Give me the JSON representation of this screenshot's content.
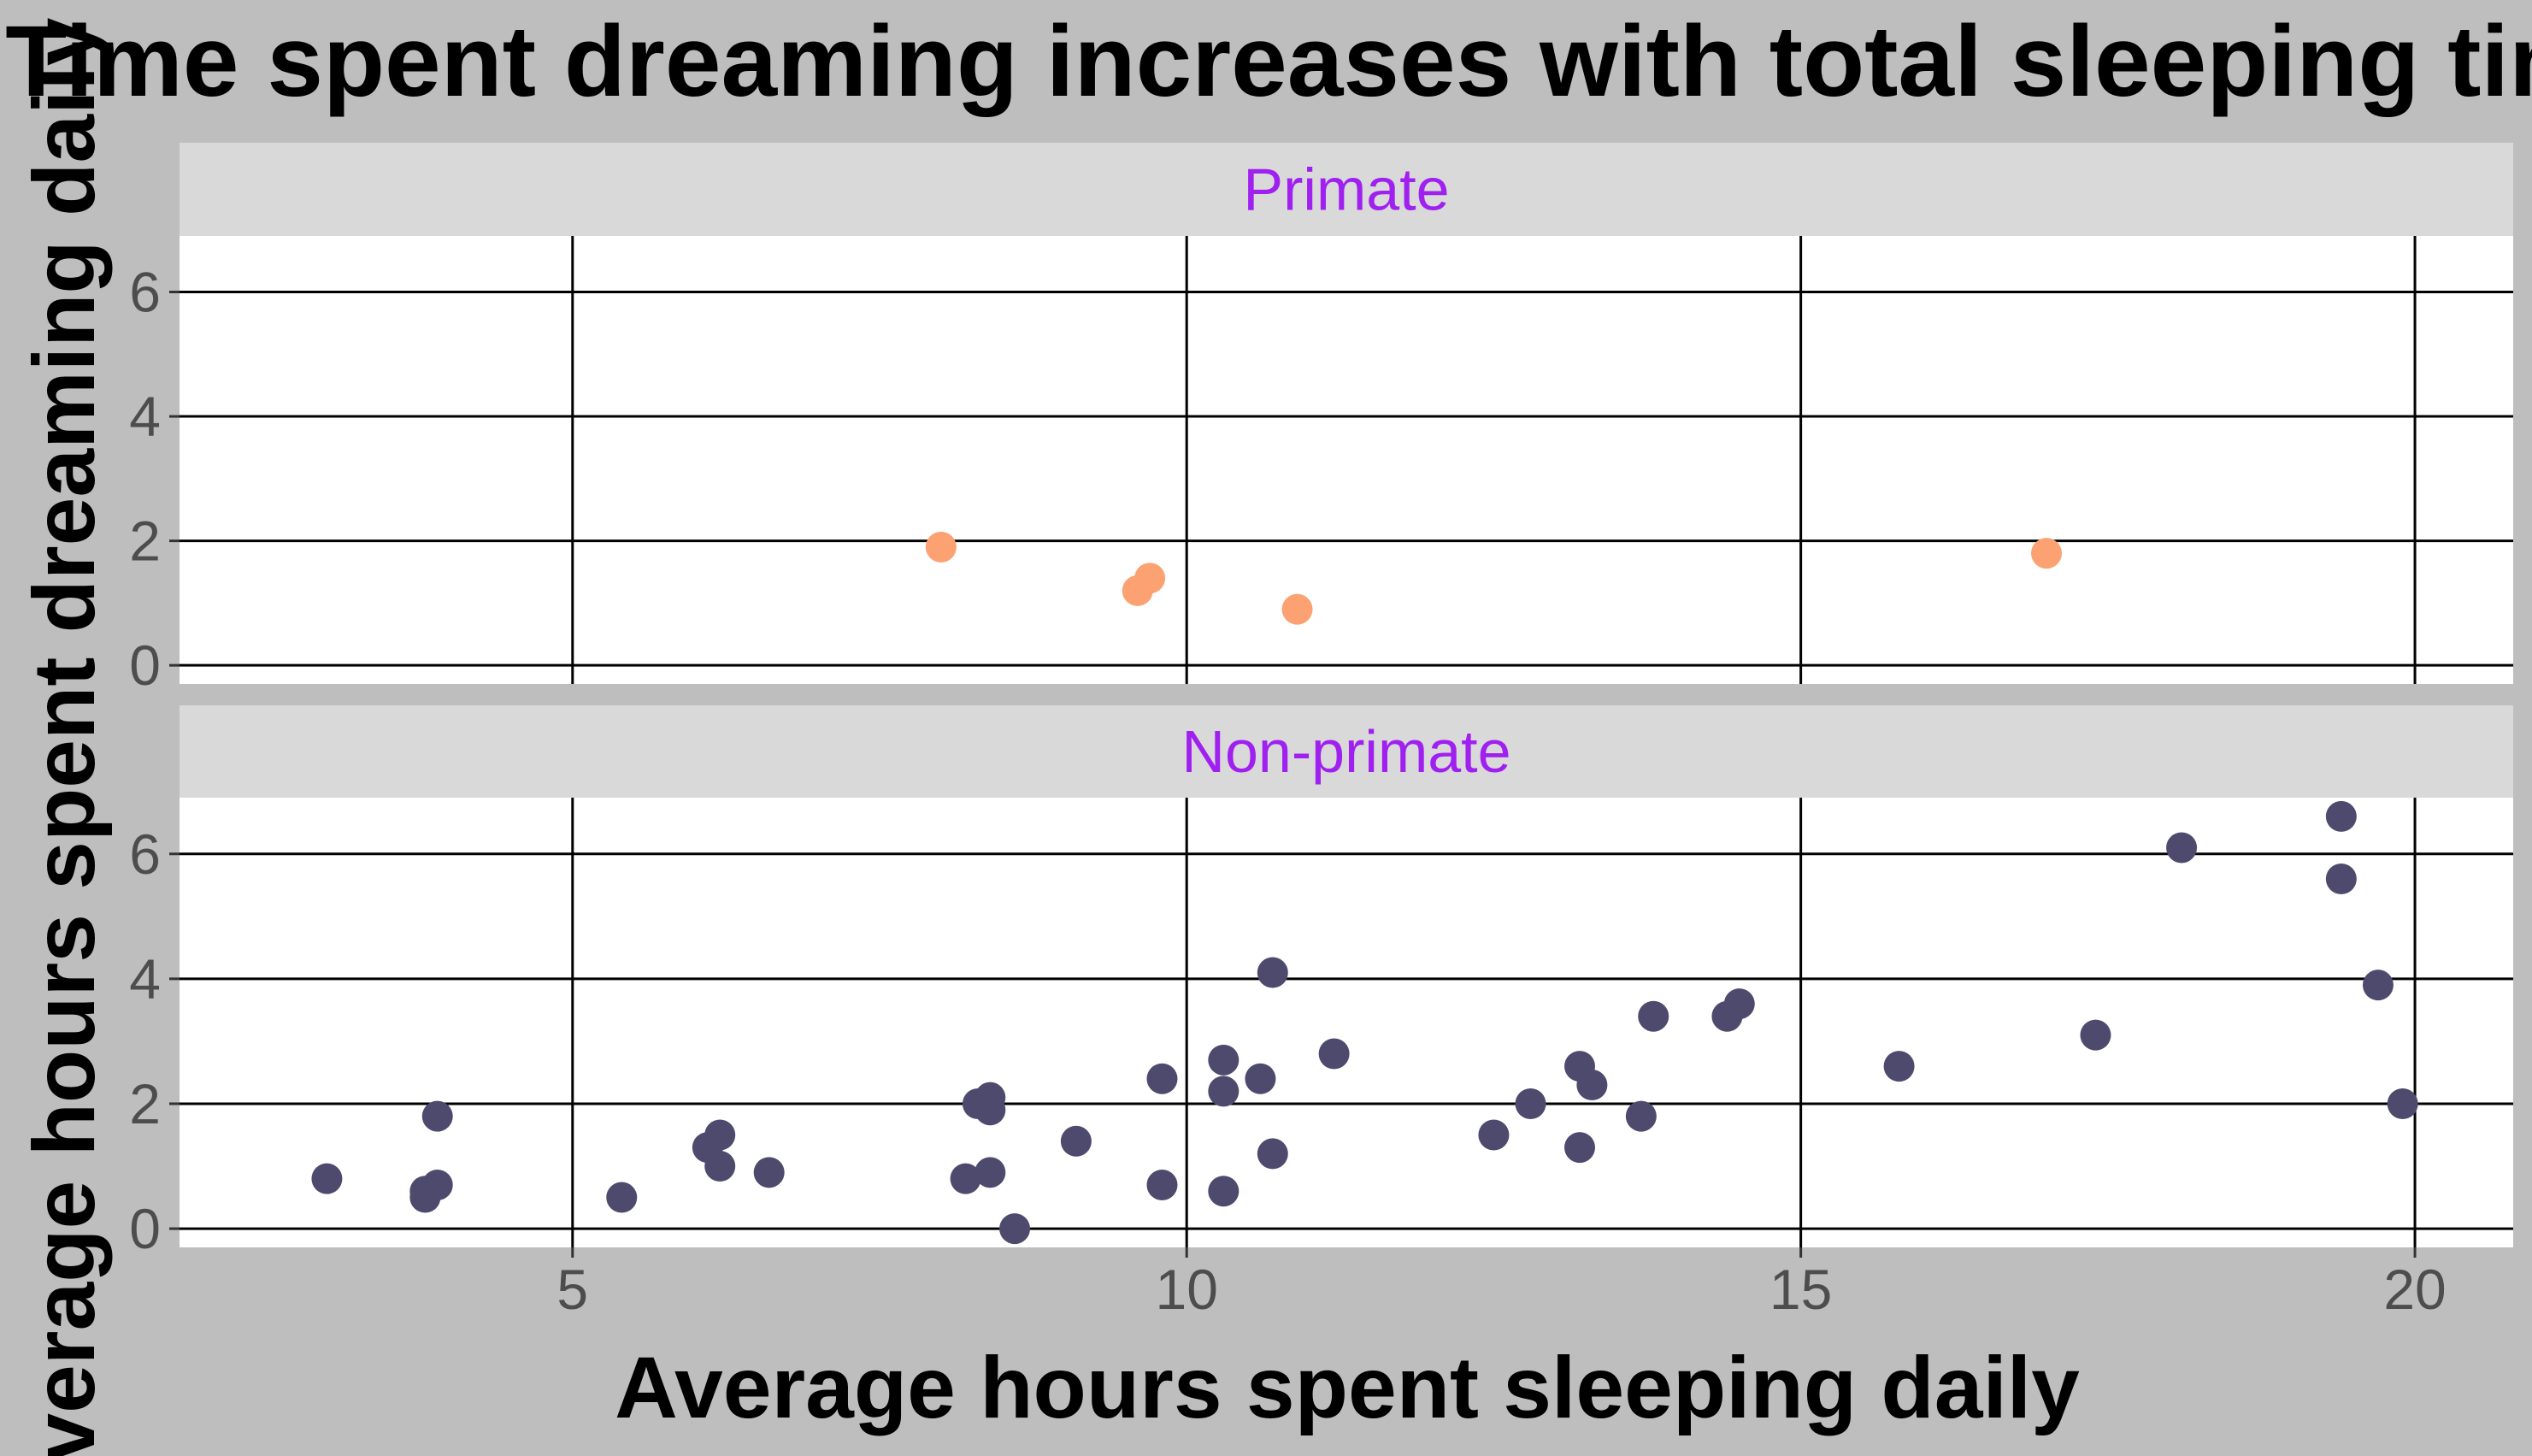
{
  "chart_data": {
    "type": "scatter",
    "title": "Time spent dreaming increases with total sleeping time",
    "xlabel": "Average hours spent sleeping daily",
    "ylabel": "Average hours spent dreaming daily",
    "xlim": [
      1.8,
      20.8
    ],
    "ylim": [
      -0.3,
      6.9
    ],
    "x_ticks": [
      5,
      10,
      15,
      20
    ],
    "y_ticks": [
      0,
      2,
      4,
      6
    ],
    "grid": true,
    "panels": [
      {
        "label": "Primate",
        "color": "#fca272",
        "points": [
          {
            "x": 8.0,
            "y": 1.9
          },
          {
            "x": 9.7,
            "y": 1.4
          },
          {
            "x": 9.6,
            "y": 1.2
          },
          {
            "x": 10.9,
            "y": 0.9
          },
          {
            "x": 17.0,
            "y": 1.8
          }
        ]
      },
      {
        "label": "Non-primate",
        "color": "#4e4a6e",
        "points": [
          {
            "x": 3.0,
            "y": 0.8
          },
          {
            "x": 3.8,
            "y": 0.6
          },
          {
            "x": 3.8,
            "y": 0.5
          },
          {
            "x": 3.9,
            "y": 0.7
          },
          {
            "x": 3.9,
            "y": 1.8
          },
          {
            "x": 5.4,
            "y": 0.5
          },
          {
            "x": 6.1,
            "y": 1.3
          },
          {
            "x": 6.2,
            "y": 1.5
          },
          {
            "x": 6.2,
            "y": 1.0
          },
          {
            "x": 6.6,
            "y": 0.9
          },
          {
            "x": 8.2,
            "y": 0.8
          },
          {
            "x": 8.3,
            "y": 2.0
          },
          {
            "x": 8.4,
            "y": 2.1
          },
          {
            "x": 8.4,
            "y": 1.9
          },
          {
            "x": 8.4,
            "y": 0.9
          },
          {
            "x": 8.6,
            "y": 0.0
          },
          {
            "x": 9.1,
            "y": 1.4
          },
          {
            "x": 9.8,
            "y": 2.4
          },
          {
            "x": 9.8,
            "y": 0.7
          },
          {
            "x": 10.3,
            "y": 2.7
          },
          {
            "x": 10.3,
            "y": 2.2
          },
          {
            "x": 10.3,
            "y": 0.6
          },
          {
            "x": 10.6,
            "y": 2.4
          },
          {
            "x": 10.7,
            "y": 4.1
          },
          {
            "x": 10.7,
            "y": 1.2
          },
          {
            "x": 11.2,
            "y": 2.8
          },
          {
            "x": 12.5,
            "y": 1.5
          },
          {
            "x": 12.8,
            "y": 2.0
          },
          {
            "x": 13.2,
            "y": 2.6
          },
          {
            "x": 13.3,
            "y": 2.3
          },
          {
            "x": 13.2,
            "y": 1.3
          },
          {
            "x": 13.7,
            "y": 1.8
          },
          {
            "x": 13.8,
            "y": 3.4
          },
          {
            "x": 14.4,
            "y": 3.4
          },
          {
            "x": 14.5,
            "y": 3.6
          },
          {
            "x": 15.8,
            "y": 2.6
          },
          {
            "x": 17.4,
            "y": 3.1
          },
          {
            "x": 18.1,
            "y": 6.1
          },
          {
            "x": 19.4,
            "y": 6.6
          },
          {
            "x": 19.4,
            "y": 5.6
          },
          {
            "x": 19.7,
            "y": 3.9
          },
          {
            "x": 19.9,
            "y": 2.0
          }
        ]
      }
    ],
    "strip_text_color": "#a020f0",
    "strip_fill": "#d9d9d9",
    "plot_background": "#bebebe",
    "panel_background": "#ffffff",
    "grid_color": "#000000"
  }
}
